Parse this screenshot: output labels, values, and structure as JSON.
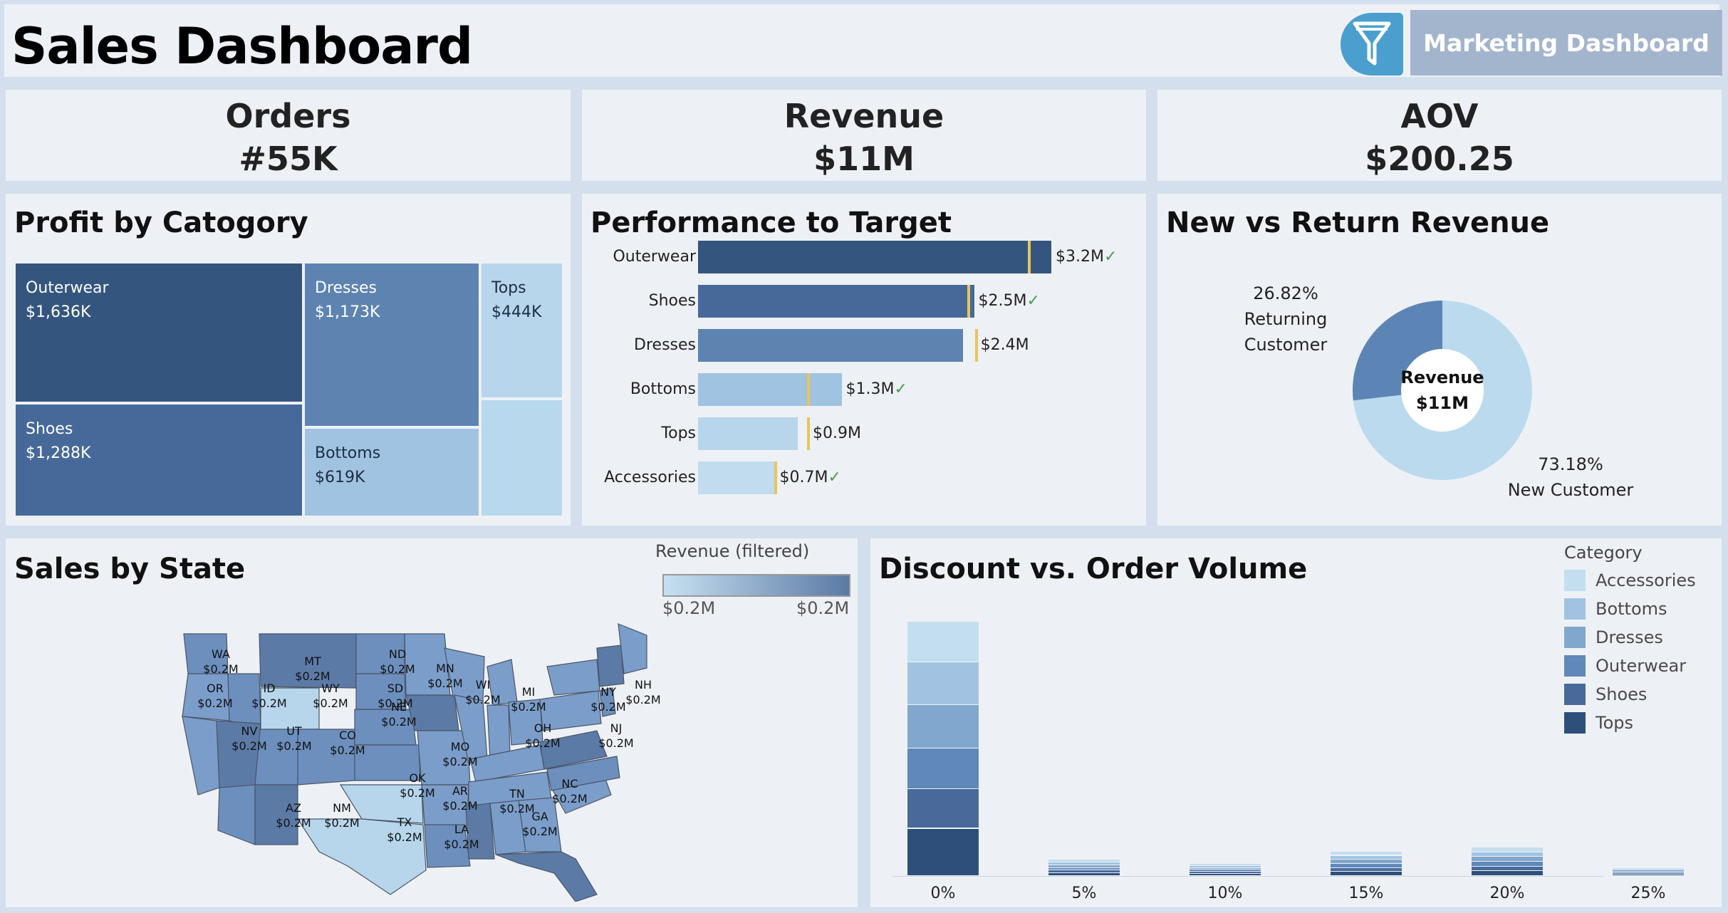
{
  "header": {
    "title": "Sales Dashboard",
    "filter_icon": "funnel-icon",
    "marketing_button": "Marketing Dashboard"
  },
  "kpis": [
    {
      "label": "Orders",
      "value": "#55K"
    },
    {
      "label": "Revenue",
      "value": "$11M"
    },
    {
      "label": "AOV",
      "value": "$200.25"
    }
  ],
  "profit_by_category": {
    "title": "Profit by Catogory",
    "cells": [
      {
        "name": "Outerwear",
        "value": "$1,636K",
        "color": "#34557e"
      },
      {
        "name": "Shoes",
        "value": "$1,288K",
        "color": "#46699a"
      },
      {
        "name": "Dresses",
        "value": "$1,173K",
        "color": "#5d83b1"
      },
      {
        "name": "Bottoms",
        "value": "$619K",
        "color": "#a0c3e2"
      },
      {
        "name": "Tops",
        "value": "$444K",
        "color": "#b7d6ec"
      },
      {
        "name": "",
        "value": "",
        "color": "#b8d8ee"
      }
    ]
  },
  "performance": {
    "title": "Performance to Target",
    "rows": [
      {
        "label": "Outerwear",
        "value": 3.2,
        "target": 3.0,
        "value_label": "$3.2M",
        "met": true,
        "color": "#34557e"
      },
      {
        "label": "Shoes",
        "value": 2.5,
        "target": 2.45,
        "value_label": "$2.5M",
        "met": true,
        "color": "#46699a"
      },
      {
        "label": "Dresses",
        "value": 2.4,
        "target": 2.52,
        "value_label": "$2.4M",
        "met": false,
        "color": "#5d83b1"
      },
      {
        "label": "Bottoms",
        "value": 1.3,
        "target": 1.0,
        "value_label": "$1.3M",
        "met": true,
        "color": "#a0c3e2"
      },
      {
        "label": "Tops",
        "value": 0.9,
        "target": 1.0,
        "value_label": "$0.9M",
        "met": false,
        "color": "#b7d6ec"
      },
      {
        "label": "Accessories",
        "value": 0.7,
        "target": 0.7,
        "value_label": "$0.7M",
        "met": true,
        "color": "#c0dcee"
      }
    ],
    "check_glyph": "✓"
  },
  "new_vs_return": {
    "title": "New vs Return Revenue",
    "center_label": "Revenue",
    "center_value": "$11M",
    "returning_pct": "26.82%",
    "returning_label": "Returning Customer",
    "new_pct": "73.18%",
    "new_label": "New Customer",
    "returning_share": 0.2682,
    "returning_color": "#5c85b6",
    "new_color": "#bcdaee"
  },
  "sales_by_state": {
    "title": "Sales by State",
    "legend_title": "Revenue (filtered)",
    "legend_min": "$0.2M",
    "legend_max": "$0.2M",
    "states": [
      {
        "code": "WA",
        "value": "$0.2M"
      },
      {
        "code": "MT",
        "value": "$0.2M"
      },
      {
        "code": "ND",
        "value": "$0.2M"
      },
      {
        "code": "MN",
        "value": "$0.2M"
      },
      {
        "code": "OR",
        "value": "$0.2M"
      },
      {
        "code": "ID",
        "value": "$0.2M"
      },
      {
        "code": "WY",
        "value": "$0.2M"
      },
      {
        "code": "SD",
        "value": "$0.2M"
      },
      {
        "code": "WI",
        "value": "$0.2M"
      },
      {
        "code": "MI",
        "value": "$0.2M"
      },
      {
        "code": "NY",
        "value": "$0.2M"
      },
      {
        "code": "NH",
        "value": "$0.2M"
      },
      {
        "code": "NV",
        "value": "$0.2M"
      },
      {
        "code": "UT",
        "value": "$0.2M"
      },
      {
        "code": "CO",
        "value": "$0.2M"
      },
      {
        "code": "NE",
        "value": "$0.2M"
      },
      {
        "code": "OH",
        "value": "$0.2M"
      },
      {
        "code": "NJ",
        "value": "$0.2M"
      },
      {
        "code": "MO",
        "value": "$0.2M"
      },
      {
        "code": "OK",
        "value": "$0.2M"
      },
      {
        "code": "AZ",
        "value": "$0.2M"
      },
      {
        "code": "NM",
        "value": "$0.2M"
      },
      {
        "code": "AR",
        "value": "$0.2M"
      },
      {
        "code": "TN",
        "value": "$0.2M"
      },
      {
        "code": "NC",
        "value": "$0.2M"
      },
      {
        "code": "TX",
        "value": "$0.2M"
      },
      {
        "code": "LA",
        "value": "$0.2M"
      },
      {
        "code": "GA",
        "value": "$0.2M"
      }
    ]
  },
  "discount_chart": {
    "title": "Discount vs. Order Volume",
    "legend_title": "Category"
  },
  "chart_data": {
    "type": "bar",
    "stacked": true,
    "title": "Discount vs. Order Volume",
    "categories": [
      "0%",
      "5%",
      "10%",
      "15%",
      "20%",
      "25%"
    ],
    "ylim": [
      0,
      40
    ],
    "series": [
      {
        "name": "Accessories",
        "color": "#c3deef",
        "values": [
          6.0,
          0.4,
          0.3,
          0.6,
          0.7,
          0.2
        ]
      },
      {
        "name": "Bottoms",
        "color": "#a1c3e1",
        "values": [
          6.3,
          0.4,
          0.3,
          0.6,
          0.7,
          0.2
        ]
      },
      {
        "name": "Dresses",
        "color": "#82a7ce",
        "values": [
          6.5,
          0.4,
          0.3,
          0.6,
          0.7,
          0.2
        ]
      },
      {
        "name": "Outerwear",
        "color": "#6088b8",
        "values": [
          6.0,
          0.4,
          0.3,
          0.6,
          0.7,
          0.2
        ]
      },
      {
        "name": "Shoes",
        "color": "#48699a",
        "values": [
          5.8,
          0.4,
          0.3,
          0.6,
          0.7,
          0.2
        ]
      },
      {
        "name": "Tops",
        "color": "#2e4f7a",
        "values": [
          7.0,
          0.4,
          0.3,
          0.6,
          0.7,
          0.2
        ]
      }
    ]
  }
}
